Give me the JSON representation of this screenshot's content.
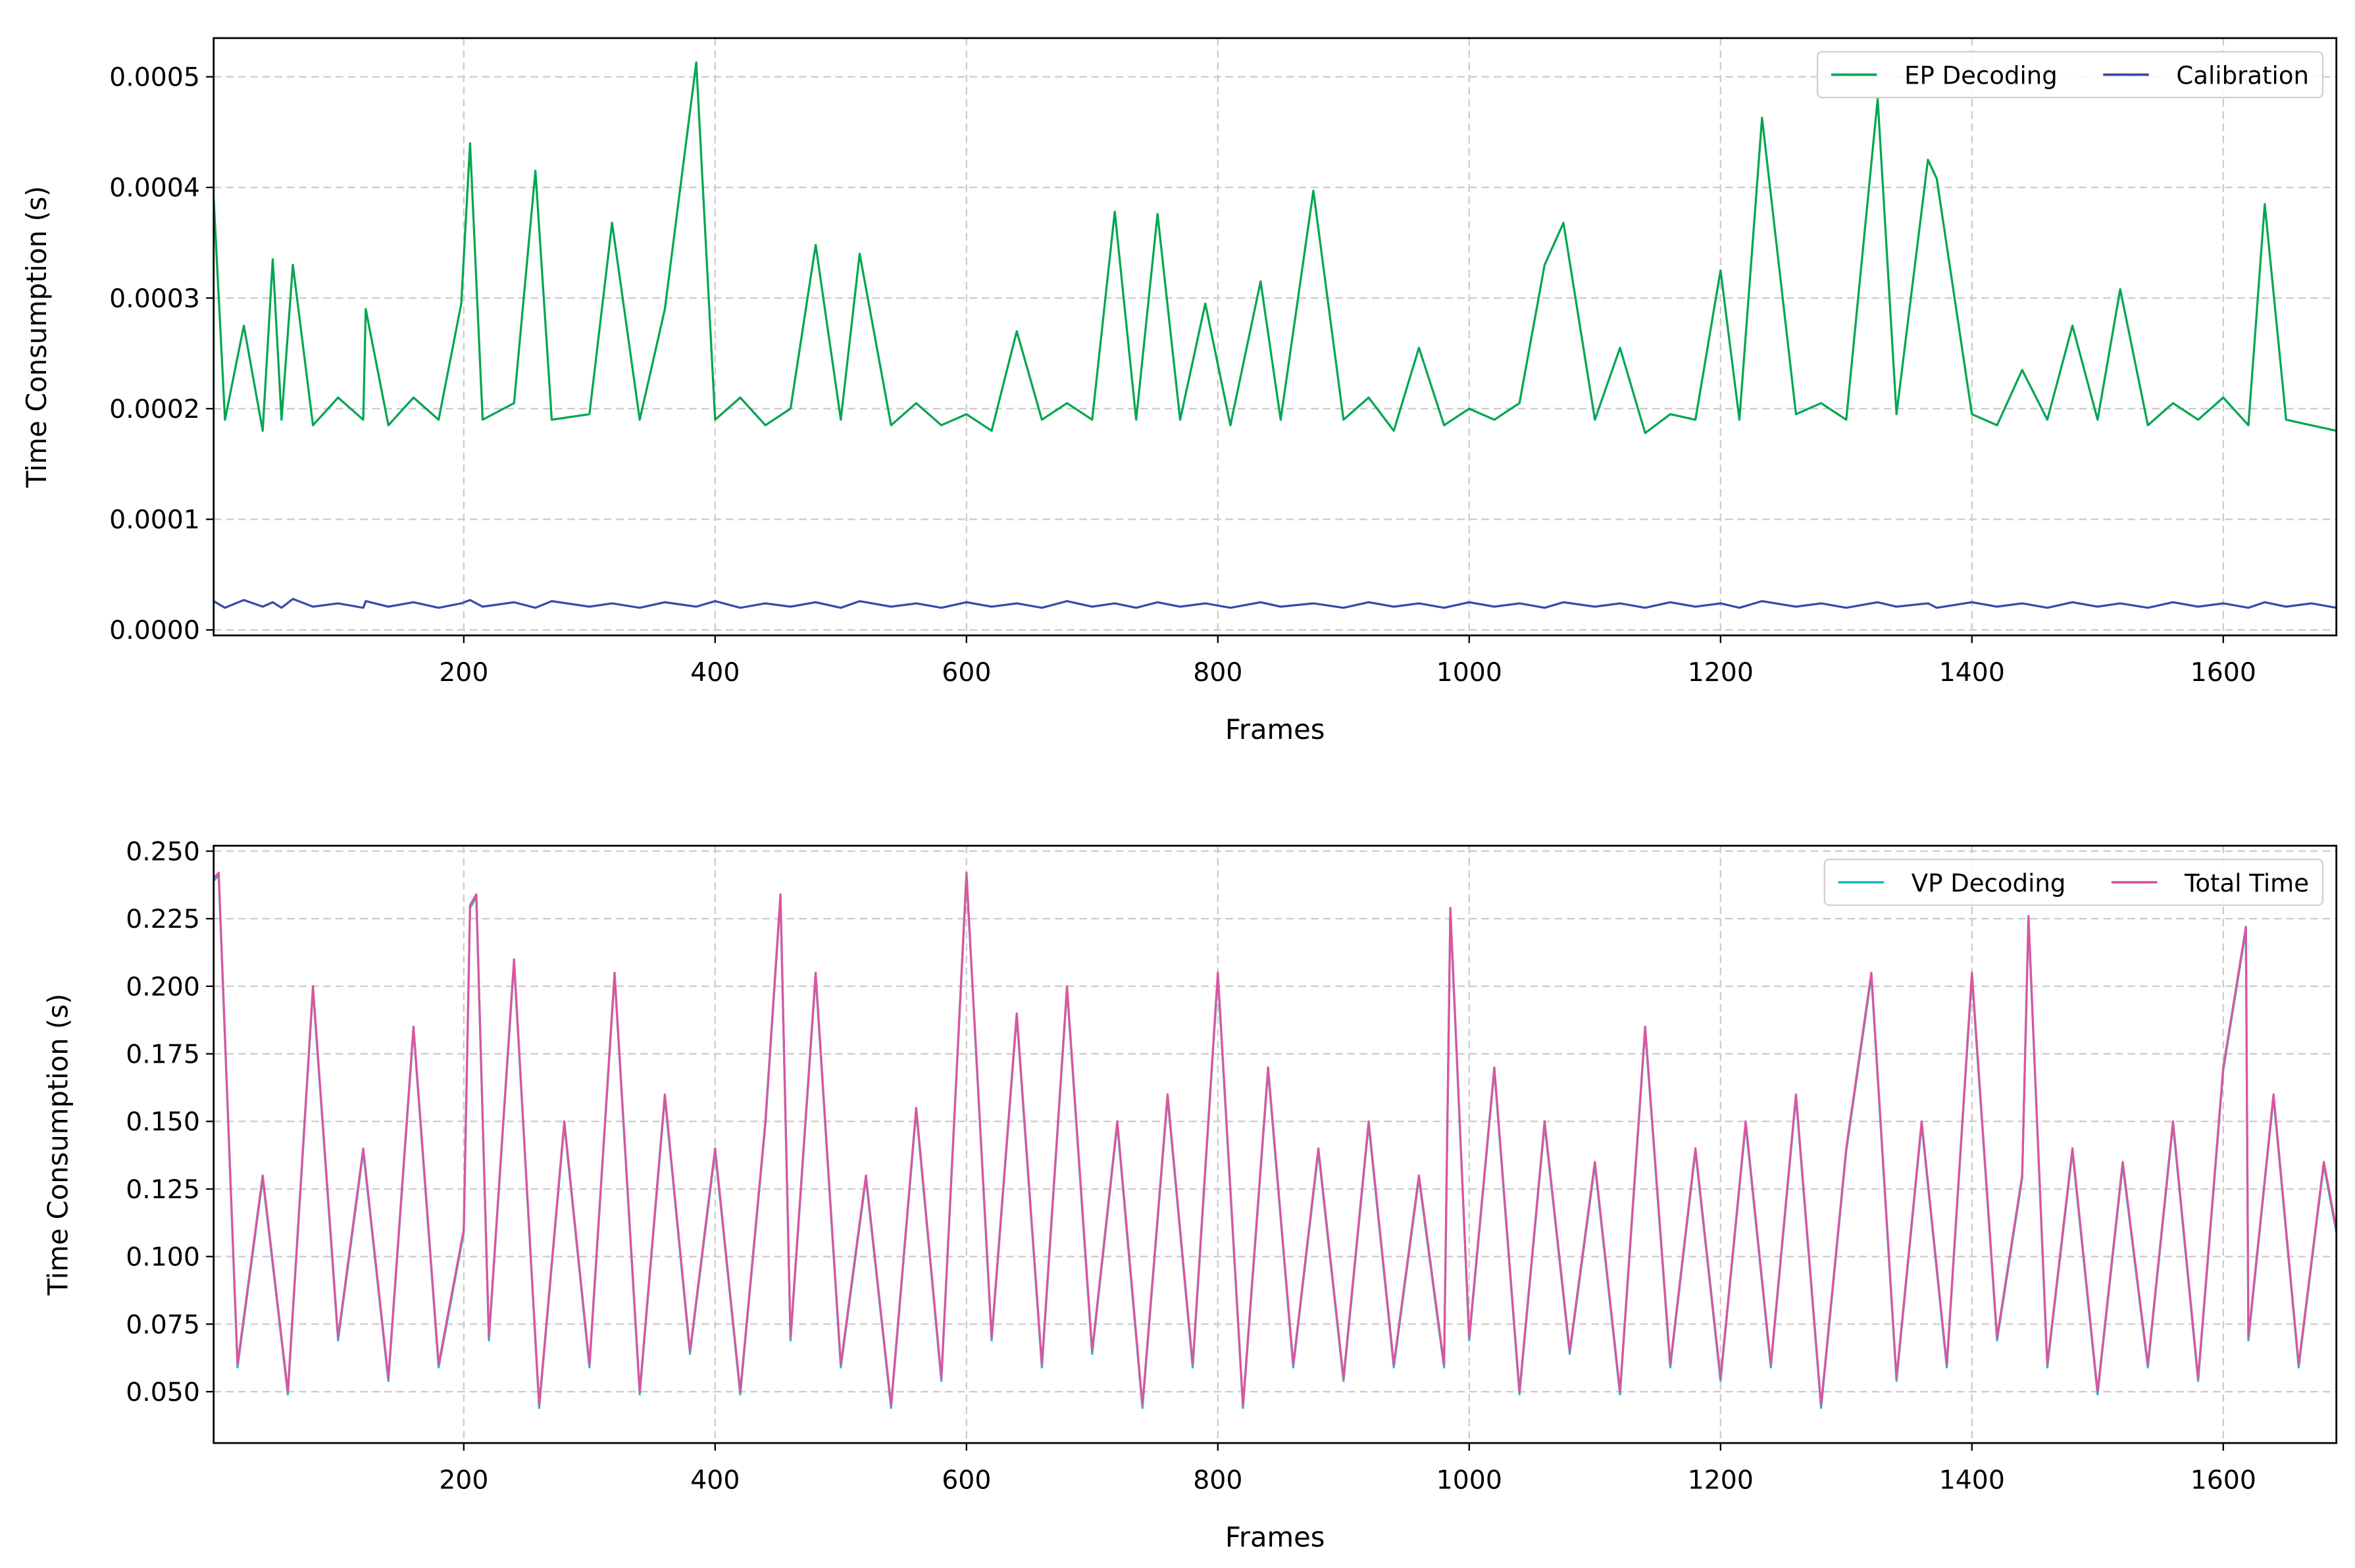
{
  "chart_data": [
    {
      "type": "line",
      "xlabel": "Frames",
      "ylabel": "Time Consumption (s)",
      "x": [
        1,
        10,
        25,
        40,
        48,
        55,
        64,
        80,
        100,
        120,
        122,
        140,
        160,
        180,
        198,
        205,
        215,
        240,
        257,
        270,
        300,
        318,
        340,
        360,
        385,
        400,
        420,
        440,
        460,
        480,
        500,
        515,
        540,
        560,
        580,
        600,
        620,
        640,
        660,
        680,
        700,
        718,
        735,
        752,
        770,
        790,
        810,
        834,
        850,
        876,
        900,
        920,
        940,
        960,
        980,
        1000,
        1020,
        1040,
        1060,
        1075,
        1100,
        1120,
        1140,
        1160,
        1180,
        1200,
        1215,
        1233,
        1260,
        1280,
        1300,
        1325,
        1340,
        1365,
        1372,
        1400,
        1420,
        1440,
        1460,
        1480,
        1500,
        1518,
        1540,
        1560,
        1580,
        1600,
        1620,
        1633,
        1650,
        1670,
        1690
      ],
      "series": [
        {
          "name": "EP Decoding",
          "color": "#00a651",
          "values": [
            0.00039,
            0.00019,
            0.000275,
            0.00018,
            0.000335,
            0.00019,
            0.00033,
            0.000185,
            0.00021,
            0.00019,
            0.00029,
            0.000185,
            0.00021,
            0.00019,
            0.000295,
            0.00044,
            0.00019,
            0.000205,
            0.000415,
            0.00019,
            0.000195,
            0.000368,
            0.00019,
            0.00029,
            0.000513,
            0.00019,
            0.00021,
            0.000185,
            0.0002,
            0.000348,
            0.00019,
            0.00034,
            0.000185,
            0.000205,
            0.000185,
            0.000195,
            0.00018,
            0.00027,
            0.00019,
            0.000205,
            0.00019,
            0.000378,
            0.00019,
            0.000376,
            0.00019,
            0.000295,
            0.000185,
            0.000315,
            0.00019,
            0.000397,
            0.00019,
            0.00021,
            0.00018,
            0.000255,
            0.000185,
            0.0002,
            0.00019,
            0.000205,
            0.00033,
            0.000368,
            0.00019,
            0.000255,
            0.000178,
            0.000195,
            0.00019,
            0.000325,
            0.00019,
            0.000463,
            0.000195,
            0.000205,
            0.00019,
            0.00048,
            0.000195,
            0.000425,
            0.000408,
            0.000195,
            0.000185,
            0.000235,
            0.00019,
            0.000275,
            0.00019,
            0.000308,
            0.000185,
            0.000205,
            0.00019,
            0.00021,
            0.000185,
            0.000385,
            0.00019,
            0.000185,
            0.00018
          ]
        },
        {
          "name": "Calibration",
          "color": "#3949ab",
          "values": [
            2.6e-05,
            2e-05,
            2.7e-05,
            2.1e-05,
            2.5e-05,
            2e-05,
            2.8e-05,
            2.1e-05,
            2.4e-05,
            2e-05,
            2.6e-05,
            2.1e-05,
            2.5e-05,
            2e-05,
            2.4e-05,
            2.7e-05,
            2.1e-05,
            2.5e-05,
            2e-05,
            2.6e-05,
            2.1e-05,
            2.4e-05,
            2e-05,
            2.5e-05,
            2.1e-05,
            2.6e-05,
            2e-05,
            2.4e-05,
            2.1e-05,
            2.5e-05,
            2e-05,
            2.6e-05,
            2.1e-05,
            2.4e-05,
            2e-05,
            2.5e-05,
            2.1e-05,
            2.4e-05,
            2e-05,
            2.6e-05,
            2.1e-05,
            2.4e-05,
            2e-05,
            2.5e-05,
            2.1e-05,
            2.4e-05,
            2e-05,
            2.5e-05,
            2.1e-05,
            2.4e-05,
            2e-05,
            2.5e-05,
            2.1e-05,
            2.4e-05,
            2e-05,
            2.5e-05,
            2.1e-05,
            2.4e-05,
            2e-05,
            2.5e-05,
            2.1e-05,
            2.4e-05,
            2e-05,
            2.5e-05,
            2.1e-05,
            2.4e-05,
            2e-05,
            2.6e-05,
            2.1e-05,
            2.4e-05,
            2e-05,
            2.5e-05,
            2.1e-05,
            2.4e-05,
            2e-05,
            2.5e-05,
            2.1e-05,
            2.4e-05,
            2e-05,
            2.5e-05,
            2.1e-05,
            2.4e-05,
            2e-05,
            2.5e-05,
            2.1e-05,
            2.4e-05,
            2e-05,
            2.5e-05,
            2.1e-05,
            2.4e-05,
            2e-05
          ]
        }
      ],
      "xlim": [
        1,
        1690
      ],
      "ylim": [
        -5e-06,
        0.000535
      ],
      "xticks": [
        200,
        400,
        600,
        800,
        1000,
        1200,
        1400,
        1600
      ],
      "yticks": [
        {
          "value": 0,
          "label": "0.0000"
        },
        0.0001,
        0.0002,
        0.0003,
        0.0004,
        0.0005
      ],
      "grid": true,
      "legend": "upper right"
    },
    {
      "type": "line",
      "xlabel": "Frames",
      "ylabel": "Time Consumption (s)",
      "x": [
        1,
        5,
        20,
        40,
        60,
        80,
        100,
        120,
        140,
        160,
        180,
        200,
        205,
        210,
        220,
        240,
        260,
        280,
        300,
        320,
        340,
        360,
        380,
        400,
        420,
        440,
        452,
        460,
        480,
        500,
        520,
        540,
        560,
        580,
        600,
        620,
        640,
        660,
        680,
        700,
        720,
        740,
        760,
        780,
        800,
        820,
        840,
        860,
        880,
        900,
        920,
        940,
        960,
        980,
        985,
        1000,
        1020,
        1040,
        1060,
        1080,
        1100,
        1120,
        1140,
        1160,
        1180,
        1200,
        1220,
        1240,
        1260,
        1280,
        1300,
        1320,
        1340,
        1360,
        1380,
        1400,
        1420,
        1440,
        1445,
        1460,
        1480,
        1500,
        1520,
        1540,
        1560,
        1580,
        1600,
        1618,
        1620,
        1640,
        1660,
        1680,
        1690
      ],
      "series": [
        {
          "name": "VP Decoding",
          "color": "#17becf",
          "values": [
            0.239,
            0.241,
            0.059,
            0.129,
            0.049,
            0.199,
            0.069,
            0.139,
            0.054,
            0.184,
            0.059,
            0.109,
            0.229,
            0.233,
            0.069,
            0.209,
            0.044,
            0.149,
            0.059,
            0.204,
            0.049,
            0.159,
            0.064,
            0.139,
            0.049,
            0.149,
            0.233,
            0.069,
            0.204,
            0.059,
            0.129,
            0.044,
            0.154,
            0.054,
            0.241,
            0.069,
            0.189,
            0.059,
            0.199,
            0.064,
            0.149,
            0.044,
            0.159,
            0.059,
            0.204,
            0.044,
            0.169,
            0.059,
            0.139,
            0.054,
            0.149,
            0.059,
            0.129,
            0.059,
            0.228,
            0.069,
            0.169,
            0.049,
            0.149,
            0.064,
            0.134,
            0.049,
            0.184,
            0.059,
            0.139,
            0.054,
            0.149,
            0.059,
            0.159,
            0.044,
            0.139,
            0.204,
            0.054,
            0.149,
            0.059,
            0.204,
            0.069,
            0.129,
            0.225,
            0.059,
            0.139,
            0.049,
            0.134,
            0.059,
            0.149,
            0.054,
            0.169,
            0.221,
            0.069,
            0.159,
            0.059,
            0.134,
            0.109
          ]
        },
        {
          "name": "Total Time",
          "color": "#d9569f",
          "values": [
            0.24,
            0.242,
            0.06,
            0.13,
            0.05,
            0.2,
            0.07,
            0.14,
            0.055,
            0.185,
            0.06,
            0.11,
            0.23,
            0.234,
            0.07,
            0.21,
            0.045,
            0.15,
            0.06,
            0.205,
            0.05,
            0.16,
            0.065,
            0.14,
            0.05,
            0.15,
            0.234,
            0.07,
            0.205,
            0.06,
            0.13,
            0.045,
            0.155,
            0.055,
            0.242,
            0.07,
            0.19,
            0.06,
            0.2,
            0.065,
            0.15,
            0.045,
            0.16,
            0.06,
            0.205,
            0.045,
            0.17,
            0.06,
            0.14,
            0.055,
            0.15,
            0.06,
            0.13,
            0.06,
            0.229,
            0.07,
            0.17,
            0.05,
            0.15,
            0.065,
            0.135,
            0.05,
            0.185,
            0.06,
            0.14,
            0.055,
            0.15,
            0.06,
            0.16,
            0.045,
            0.14,
            0.205,
            0.055,
            0.15,
            0.06,
            0.205,
            0.07,
            0.13,
            0.226,
            0.06,
            0.14,
            0.05,
            0.135,
            0.06,
            0.15,
            0.055,
            0.17,
            0.222,
            0.07,
            0.16,
            0.06,
            0.135,
            0.11
          ]
        }
      ],
      "xlim": [
        1,
        1690
      ],
      "ylim": [
        0.031,
        0.252
      ],
      "xticks": [
        200,
        400,
        600,
        800,
        1000,
        1200,
        1400,
        1600
      ],
      "yticks": [
        {
          "value": 0.05,
          "label": "0.050"
        },
        0.075,
        {
          "value": 0.1,
          "label": "0.100"
        },
        0.125,
        {
          "value": 0.15,
          "label": "0.150"
        },
        0.175,
        {
          "value": 0.2,
          "label": "0.200"
        },
        0.225,
        {
          "value": 0.25,
          "label": "0.250"
        }
      ],
      "grid": true,
      "legend": "upper right"
    }
  ]
}
